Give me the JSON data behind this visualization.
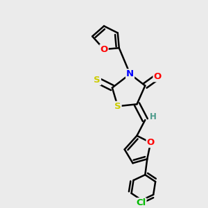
{
  "bg_color": "#ebebeb",
  "bond_color": "#000000",
  "atom_colors": {
    "O": "#ff0000",
    "N": "#0000ff",
    "S": "#cccc00",
    "Cl": "#00bb00",
    "H": "#4a9a8a"
  },
  "line_width": 1.8,
  "font_size": 9.5
}
